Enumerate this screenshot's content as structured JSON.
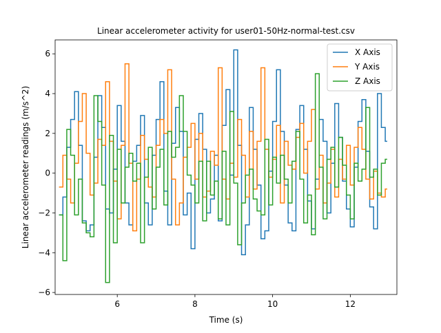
{
  "chart_data": {
    "type": "line",
    "step": "post",
    "title": "Linear accelerometer activity for user01-50Hz-normal-test.csv",
    "xlabel": "Time (s)",
    "ylabel": "Linear accelerometer readings (m/s^2)",
    "xlim": [
      4.4,
      13.2
    ],
    "ylim": [
      -6.1,
      6.7
    ],
    "xticks": [
      6,
      8,
      10,
      12
    ],
    "yticks": [
      -6,
      -4,
      -2,
      0,
      2,
      4,
      6
    ],
    "grid": false,
    "legend_position": "top-right",
    "series": [
      {
        "name": "X Axis",
        "color": "#1f77b4",
        "x": [
          4.5,
          4.6,
          4.7,
          4.8,
          4.9,
          5.0,
          5.1,
          5.2,
          5.3,
          5.4,
          5.5,
          5.6,
          5.7,
          5.8,
          5.9,
          6.0,
          6.1,
          6.2,
          6.3,
          6.4,
          6.5,
          6.6,
          6.7,
          6.8,
          6.9,
          7.0,
          7.1,
          7.2,
          7.3,
          7.4,
          7.5,
          7.6,
          7.7,
          7.8,
          7.9,
          8.0,
          8.1,
          8.2,
          8.3,
          8.4,
          8.5,
          8.6,
          8.7,
          8.8,
          8.9,
          9.0,
          9.1,
          9.2,
          9.3,
          9.4,
          9.5,
          9.6,
          9.7,
          9.8,
          9.9,
          10.0,
          10.1,
          10.2,
          10.3,
          10.4,
          10.5,
          10.6,
          10.7,
          10.8,
          10.9,
          11.0,
          11.1,
          11.2,
          11.3,
          11.4,
          11.5,
          11.6,
          11.7,
          11.8,
          11.9,
          12.0,
          12.1,
          12.2,
          12.3,
          12.4,
          12.5,
          12.6,
          12.7,
          12.8,
          12.9
        ],
        "y": [
          -2.1,
          -1.2,
          1.3,
          2.7,
          4.1,
          1.4,
          -2.4,
          -2.9,
          -2.6,
          0.8,
          3.9,
          2.3,
          -1.8,
          -2.0,
          0.2,
          3.4,
          1.6,
          -1.5,
          -2.6,
          0.6,
          1.4,
          2.9,
          -1.5,
          -2.6,
          0.9,
          2.7,
          4.6,
          -0.9,
          -2.6,
          1.5,
          3.3,
          2.1,
          -2.1,
          -1.0,
          -3.8,
          1.7,
          3.0,
          1.2,
          -2.0,
          -1.3,
          0.9,
          -2.4,
          2.4,
          4.2,
          -0.1,
          6.2,
          1.4,
          -4.1,
          -2.6,
          3.3,
          1.2,
          -0.6,
          -3.3,
          -2.9,
          0.1,
          2.6,
          5.2,
          2.1,
          -0.6,
          -2.5,
          -2.9,
          2.2,
          3.4,
          1.2,
          -1.4,
          -2.8,
          -0.3,
          2.7,
          1.6,
          -2.0,
          0.5,
          3.5,
          1.8,
          -0.4,
          -1.8,
          -2.7,
          0.3,
          2.6,
          3.7,
          1.1,
          -1.7,
          -2.8,
          4.0,
          2.3,
          1.6
        ]
      },
      {
        "name": "Y Axis",
        "color": "#ff7f0e",
        "x": [
          4.5,
          4.6,
          4.7,
          4.8,
          4.9,
          5.0,
          5.1,
          5.2,
          5.3,
          5.4,
          5.5,
          5.6,
          5.7,
          5.8,
          5.9,
          6.0,
          6.1,
          6.2,
          6.3,
          6.4,
          6.5,
          6.6,
          6.7,
          6.8,
          6.9,
          7.0,
          7.1,
          7.2,
          7.3,
          7.4,
          7.5,
          7.6,
          7.7,
          7.8,
          7.9,
          8.0,
          8.1,
          8.2,
          8.3,
          8.4,
          8.5,
          8.6,
          8.7,
          8.8,
          8.9,
          9.0,
          9.1,
          9.2,
          9.3,
          9.4,
          9.5,
          9.6,
          9.7,
          9.8,
          9.9,
          10.0,
          10.1,
          10.2,
          10.3,
          10.4,
          10.5,
          10.6,
          10.7,
          10.8,
          10.9,
          11.0,
          11.1,
          11.2,
          11.3,
          11.4,
          11.5,
          11.6,
          11.7,
          11.8,
          11.9,
          12.0,
          12.1,
          12.2,
          12.3,
          12.4,
          12.5,
          12.6,
          12.7,
          12.8,
          12.9
        ],
        "y": [
          -0.7,
          0.9,
          -0.3,
          -1.5,
          0.5,
          2.6,
          4.0,
          1.0,
          -1.1,
          -0.5,
          1.7,
          1.4,
          4.6,
          1.6,
          -0.4,
          -2.3,
          1.4,
          5.5,
          0.5,
          -2.9,
          -0.3,
          1.9,
          0.7,
          -0.7,
          -1.2,
          1.4,
          2.7,
          2.0,
          5.2,
          -0.3,
          -2.6,
          -1.5,
          0.8,
          1.3,
          2.5,
          -0.3,
          2.0,
          -1.2,
          -0.9,
          1.1,
          0.4,
          5.3,
          -0.3,
          -1.3,
          0.5,
          -0.2,
          2.7,
          0.9,
          -1.2,
          2.1,
          -0.8,
          1.6,
          5.3,
          1.2,
          -0.2,
          0.7,
          2.4,
          -1.5,
          1.6,
          0.4,
          0.2,
          1.8,
          2.5,
          0.0,
          1.6,
          3.2,
          -0.8,
          0.9,
          -1.5,
          -0.5,
          1.2,
          -1.2,
          0.7,
          -0.3,
          1.4,
          -0.6,
          1.3,
          2.3,
          1.2,
          -0.3,
          -1.3,
          0.1,
          -1.0,
          -1.2,
          -0.8
        ]
      },
      {
        "name": "Z Axis",
        "color": "#2ca02c",
        "x": [
          4.5,
          4.6,
          4.7,
          4.8,
          4.9,
          5.0,
          5.1,
          5.2,
          5.3,
          5.4,
          5.5,
          5.6,
          5.7,
          5.8,
          5.9,
          6.0,
          6.1,
          6.2,
          6.3,
          6.4,
          6.5,
          6.6,
          6.7,
          6.8,
          6.9,
          7.0,
          7.1,
          7.2,
          7.3,
          7.4,
          7.5,
          7.6,
          7.7,
          7.8,
          7.9,
          8.0,
          8.1,
          8.2,
          8.3,
          8.4,
          8.5,
          8.6,
          8.7,
          8.8,
          8.9,
          9.0,
          9.1,
          9.2,
          9.3,
          9.4,
          9.5,
          9.6,
          9.7,
          9.8,
          9.9,
          10.0,
          10.1,
          10.2,
          10.3,
          10.4,
          10.5,
          10.6,
          10.7,
          10.8,
          10.9,
          11.0,
          11.1,
          11.2,
          11.3,
          11.4,
          11.5,
          11.6,
          11.7,
          11.8,
          11.9,
          12.0,
          12.1,
          12.2,
          12.3,
          12.4,
          12.5,
          12.6,
          12.7,
          12.8,
          12.9
        ],
        "y": [
          -2.1,
          -4.4,
          2.2,
          0.9,
          -2.1,
          -0.3,
          -2.5,
          -3.0,
          -3.2,
          3.9,
          2.6,
          -0.6,
          -5.5,
          1.9,
          -3.5,
          1.2,
          -1.5,
          0.3,
          1.0,
          -0.4,
          0.5,
          -3.5,
          -0.2,
          1.3,
          -1.8,
          0.3,
          1.2,
          -1.6,
          2.1,
          0.8,
          1.3,
          3.9,
          2.1,
          -0.1,
          -0.6,
          -1.5,
          0.6,
          -2.4,
          0.6,
          -1.1,
          -0.4,
          -2.3,
          1.1,
          -2.6,
          3.1,
          -0.5,
          -3.6,
          -1.5,
          -0.1,
          0.2,
          -1.3,
          -1.9,
          -2.1,
          1.7,
          -1.6,
          0.8,
          -0.5,
          0.9,
          -0.3,
          -1.5,
          0.6,
          2.1,
          -0.3,
          -2.5,
          -1.1,
          -3.1,
          5.0,
          0.3,
          -2.3,
          0.7,
          1.3,
          -0.7,
          1.8,
          0.4,
          -1.1,
          -2.3,
          0.5,
          -0.4,
          0.2,
          3.3,
          -0.2,
          0.2,
          -1.1,
          0.5,
          0.7
        ]
      }
    ]
  }
}
